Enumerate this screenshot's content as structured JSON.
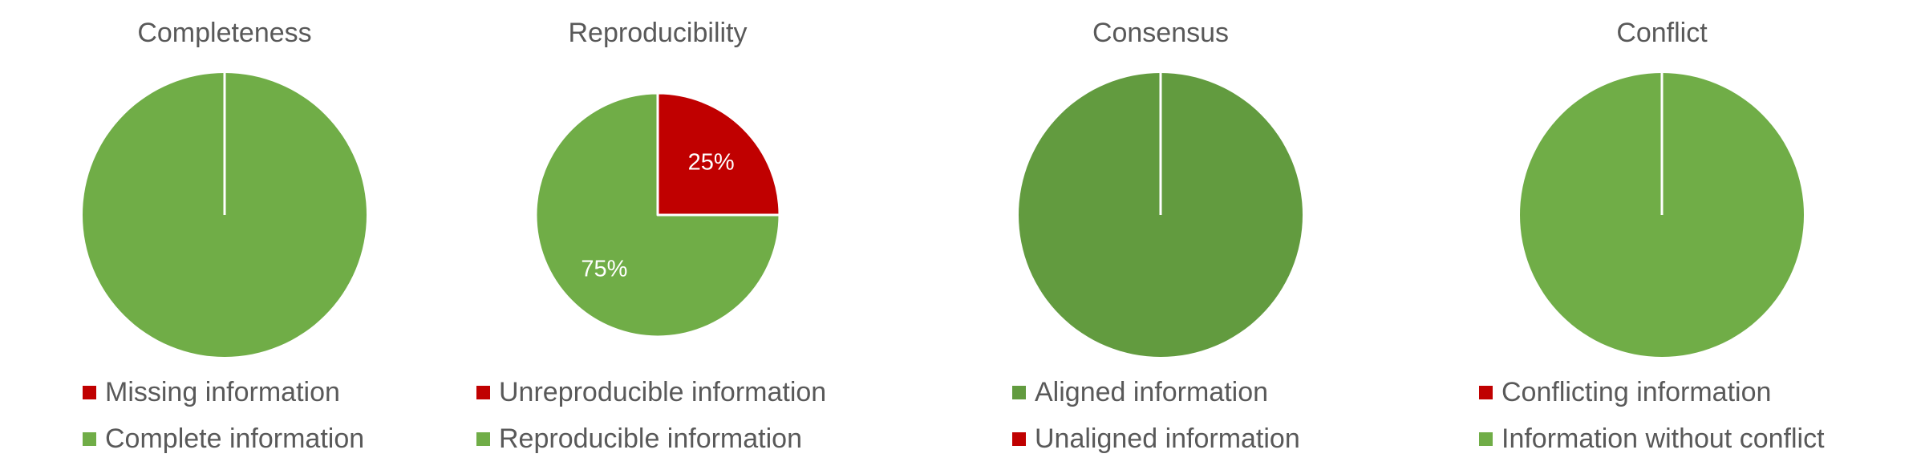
{
  "chart_data": [
    {
      "type": "pie",
      "title": "Completeness",
      "categories": [
        "Missing information",
        "Complete information"
      ],
      "values": [
        0,
        100
      ],
      "data_labels": [
        "",
        ""
      ],
      "colors": [
        "#C00000",
        "#70AD47"
      ],
      "legend_position": "bottom"
    },
    {
      "type": "pie",
      "title": "Reproducibility",
      "categories": [
        "Unreproducible information",
        "Reproducible information"
      ],
      "values": [
        25,
        75
      ],
      "data_labels": [
        "25%",
        "75%"
      ],
      "colors": [
        "#C00000",
        "#70AD47"
      ],
      "legend_position": "bottom"
    },
    {
      "type": "pie",
      "title": "Consensus",
      "categories": [
        "Aligned information",
        "Unaligned information"
      ],
      "values": [
        100,
        0
      ],
      "data_labels": [
        "",
        ""
      ],
      "colors": [
        "#629B3F",
        "#C00000"
      ],
      "legend_position": "bottom"
    },
    {
      "type": "pie",
      "title": "Conflict",
      "categories": [
        "Conflicting information",
        "Information without conflict"
      ],
      "values": [
        0,
        100
      ],
      "data_labels": [
        "",
        ""
      ],
      "colors": [
        "#C00000",
        "#70AD47"
      ],
      "legend_position": "bottom"
    }
  ]
}
